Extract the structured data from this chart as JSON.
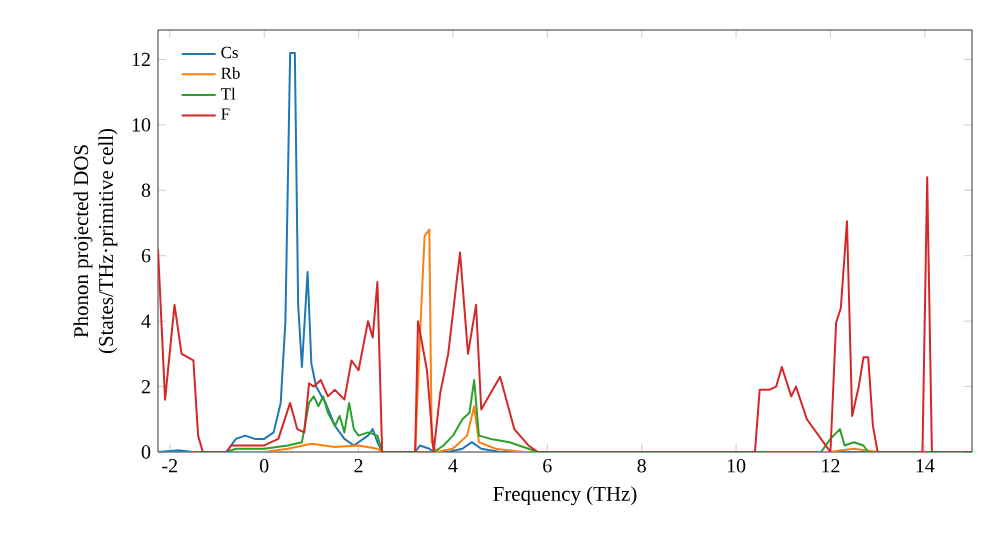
{
  "chart_data": {
    "type": "line",
    "xlabel": "Frequency (THz)",
    "ylabel": "Phonon projected DOS\n(States/THz·primitive cell)",
    "xlim": [
      -2.25,
      15
    ],
    "ylim": [
      0,
      12.9
    ],
    "xticks": [
      -2,
      0,
      2,
      4,
      6,
      8,
      10,
      12,
      14
    ],
    "yticks": [
      0,
      2,
      4,
      6,
      8,
      10,
      12
    ],
    "legend": "top left",
    "grid": false,
    "series": [
      {
        "name": "Cs",
        "color": "#1f77b4",
        "x": [
          -2.25,
          -1.8,
          -1.5,
          -0.8,
          -0.6,
          -0.4,
          -0.2,
          0,
          0.2,
          0.35,
          0.45,
          0.55,
          0.65,
          0.72,
          0.8,
          0.92,
          1.0,
          1.1,
          1.3,
          1.5,
          1.7,
          1.9,
          2.1,
          2.2,
          2.3,
          2.4,
          2.5,
          3.2,
          3.3,
          3.5,
          3.6,
          3.9,
          4.2,
          4.4,
          4.6,
          5.0,
          15
        ],
        "values": [
          0,
          0.05,
          0,
          0,
          0.4,
          0.5,
          0.4,
          0.4,
          0.6,
          1.5,
          4,
          12.2,
          12.2,
          4.5,
          2.6,
          5.5,
          2.7,
          2.0,
          1.5,
          0.8,
          0.4,
          0.2,
          0.4,
          0.5,
          0.7,
          0.3,
          0,
          0,
          0.2,
          0.1,
          0,
          0,
          0.1,
          0.3,
          0.1,
          0,
          0
        ]
      },
      {
        "name": "Rb",
        "color": "#ff7f0e",
        "x": [
          -2.25,
          0,
          0.5,
          1.0,
          1.5,
          2.0,
          2.4,
          2.5,
          3.2,
          3.3,
          3.4,
          3.5,
          3.55,
          3.65,
          4.0,
          4.3,
          4.45,
          4.55,
          4.9,
          5.5,
          12.0,
          12.2,
          12.5,
          13.0,
          15
        ],
        "values": [
          0,
          0,
          0.1,
          0.25,
          0.15,
          0.2,
          0.1,
          0,
          0,
          3.5,
          6.6,
          6.8,
          0.3,
          0,
          0.1,
          0.5,
          1.4,
          0.3,
          0.1,
          0,
          0,
          0.05,
          0.1,
          0,
          0
        ]
      },
      {
        "name": "Tl",
        "color": "#2ca02c",
        "x": [
          -2.25,
          -0.8,
          -0.6,
          0,
          0.5,
          0.8,
          0.95,
          1.05,
          1.15,
          1.25,
          1.35,
          1.5,
          1.6,
          1.7,
          1.8,
          1.9,
          2.0,
          2.2,
          2.4,
          2.5,
          3.2,
          3.6,
          3.8,
          4.0,
          4.2,
          4.35,
          4.45,
          4.55,
          4.8,
          5.2,
          5.6,
          5.8,
          11.8,
          12.0,
          12.2,
          12.3,
          12.5,
          12.7,
          12.8,
          15
        ],
        "values": [
          0,
          0,
          0.1,
          0.1,
          0.2,
          0.3,
          1.5,
          1.7,
          1.4,
          1.7,
          1.2,
          0.8,
          1.1,
          0.6,
          1.5,
          0.7,
          0.5,
          0.6,
          0.5,
          0,
          0,
          0,
          0.2,
          0.5,
          1.0,
          1.2,
          2.2,
          0.5,
          0.4,
          0.3,
          0.1,
          0,
          0,
          0.4,
          0.7,
          0.2,
          0.3,
          0.2,
          0,
          0
        ]
      },
      {
        "name": "F",
        "color": "#d62728",
        "x": [
          -2.25,
          -2.1,
          -1.9,
          -1.75,
          -1.5,
          -1.4,
          -1.3,
          -0.8,
          -0.7,
          0,
          0.3,
          0.55,
          0.7,
          0.85,
          0.95,
          1.05,
          1.2,
          1.35,
          1.5,
          1.7,
          1.85,
          2.0,
          2.2,
          2.3,
          2.4,
          2.5,
          3.2,
          3.26,
          3.45,
          3.59,
          3.73,
          3.9,
          4.15,
          4.32,
          4.49,
          4.6,
          4.8,
          5.0,
          5.3,
          5.6,
          5.8,
          10.4,
          10.5,
          10.7,
          10.85,
          10.97,
          11.17,
          11.27,
          11.5,
          11.8,
          12.0,
          12.12,
          12.22,
          12.35,
          12.46,
          12.6,
          12.7,
          12.8,
          12.9,
          13.0,
          13.95,
          14.05,
          14.15,
          15
        ],
        "values": [
          6.2,
          1.6,
          4.5,
          3,
          2.8,
          0.5,
          0,
          0,
          0.2,
          0.2,
          0.4,
          1.5,
          0.7,
          0.6,
          2.1,
          2.0,
          2.2,
          1.7,
          1.9,
          1.6,
          2.8,
          2.5,
          4.0,
          3.5,
          5.2,
          0,
          0,
          4.0,
          2.5,
          0,
          1.8,
          3.0,
          6.1,
          3.0,
          4.5,
          1.3,
          1.8,
          2.3,
          0.7,
          0.2,
          0,
          0,
          1.9,
          1.9,
          2.0,
          2.6,
          1.7,
          2.0,
          1.0,
          0.4,
          0,
          3.95,
          4.4,
          7.05,
          1.1,
          2.0,
          2.9,
          2.9,
          0.8,
          0,
          0,
          8.4,
          0,
          0
        ]
      }
    ]
  }
}
